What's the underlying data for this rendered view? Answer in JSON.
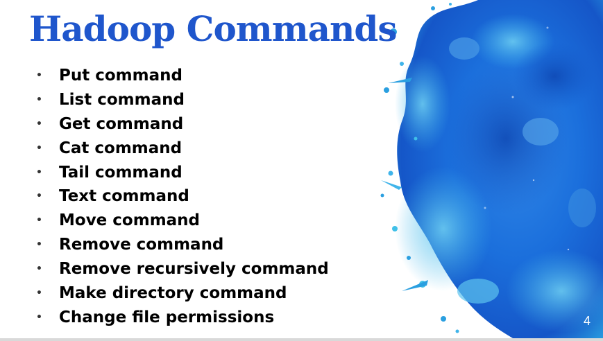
{
  "slide": {
    "title": "Hadoop Commands",
    "bullets": [
      "Put command",
      "List command",
      "Get command",
      "Cat command",
      "Tail command",
      "Text command",
      "Move command",
      "Remove command",
      "Remove recursively command",
      "Make directory command",
      "Change file permissions"
    ],
    "bullet_glyph": "•",
    "page_number": "4",
    "colors": {
      "title": "#1f56cc",
      "text": "#000000",
      "splash_primary": "#1a73d9",
      "splash_accent": "#3fc0e8"
    },
    "decoration_icon": "blue-watercolor-splash"
  }
}
